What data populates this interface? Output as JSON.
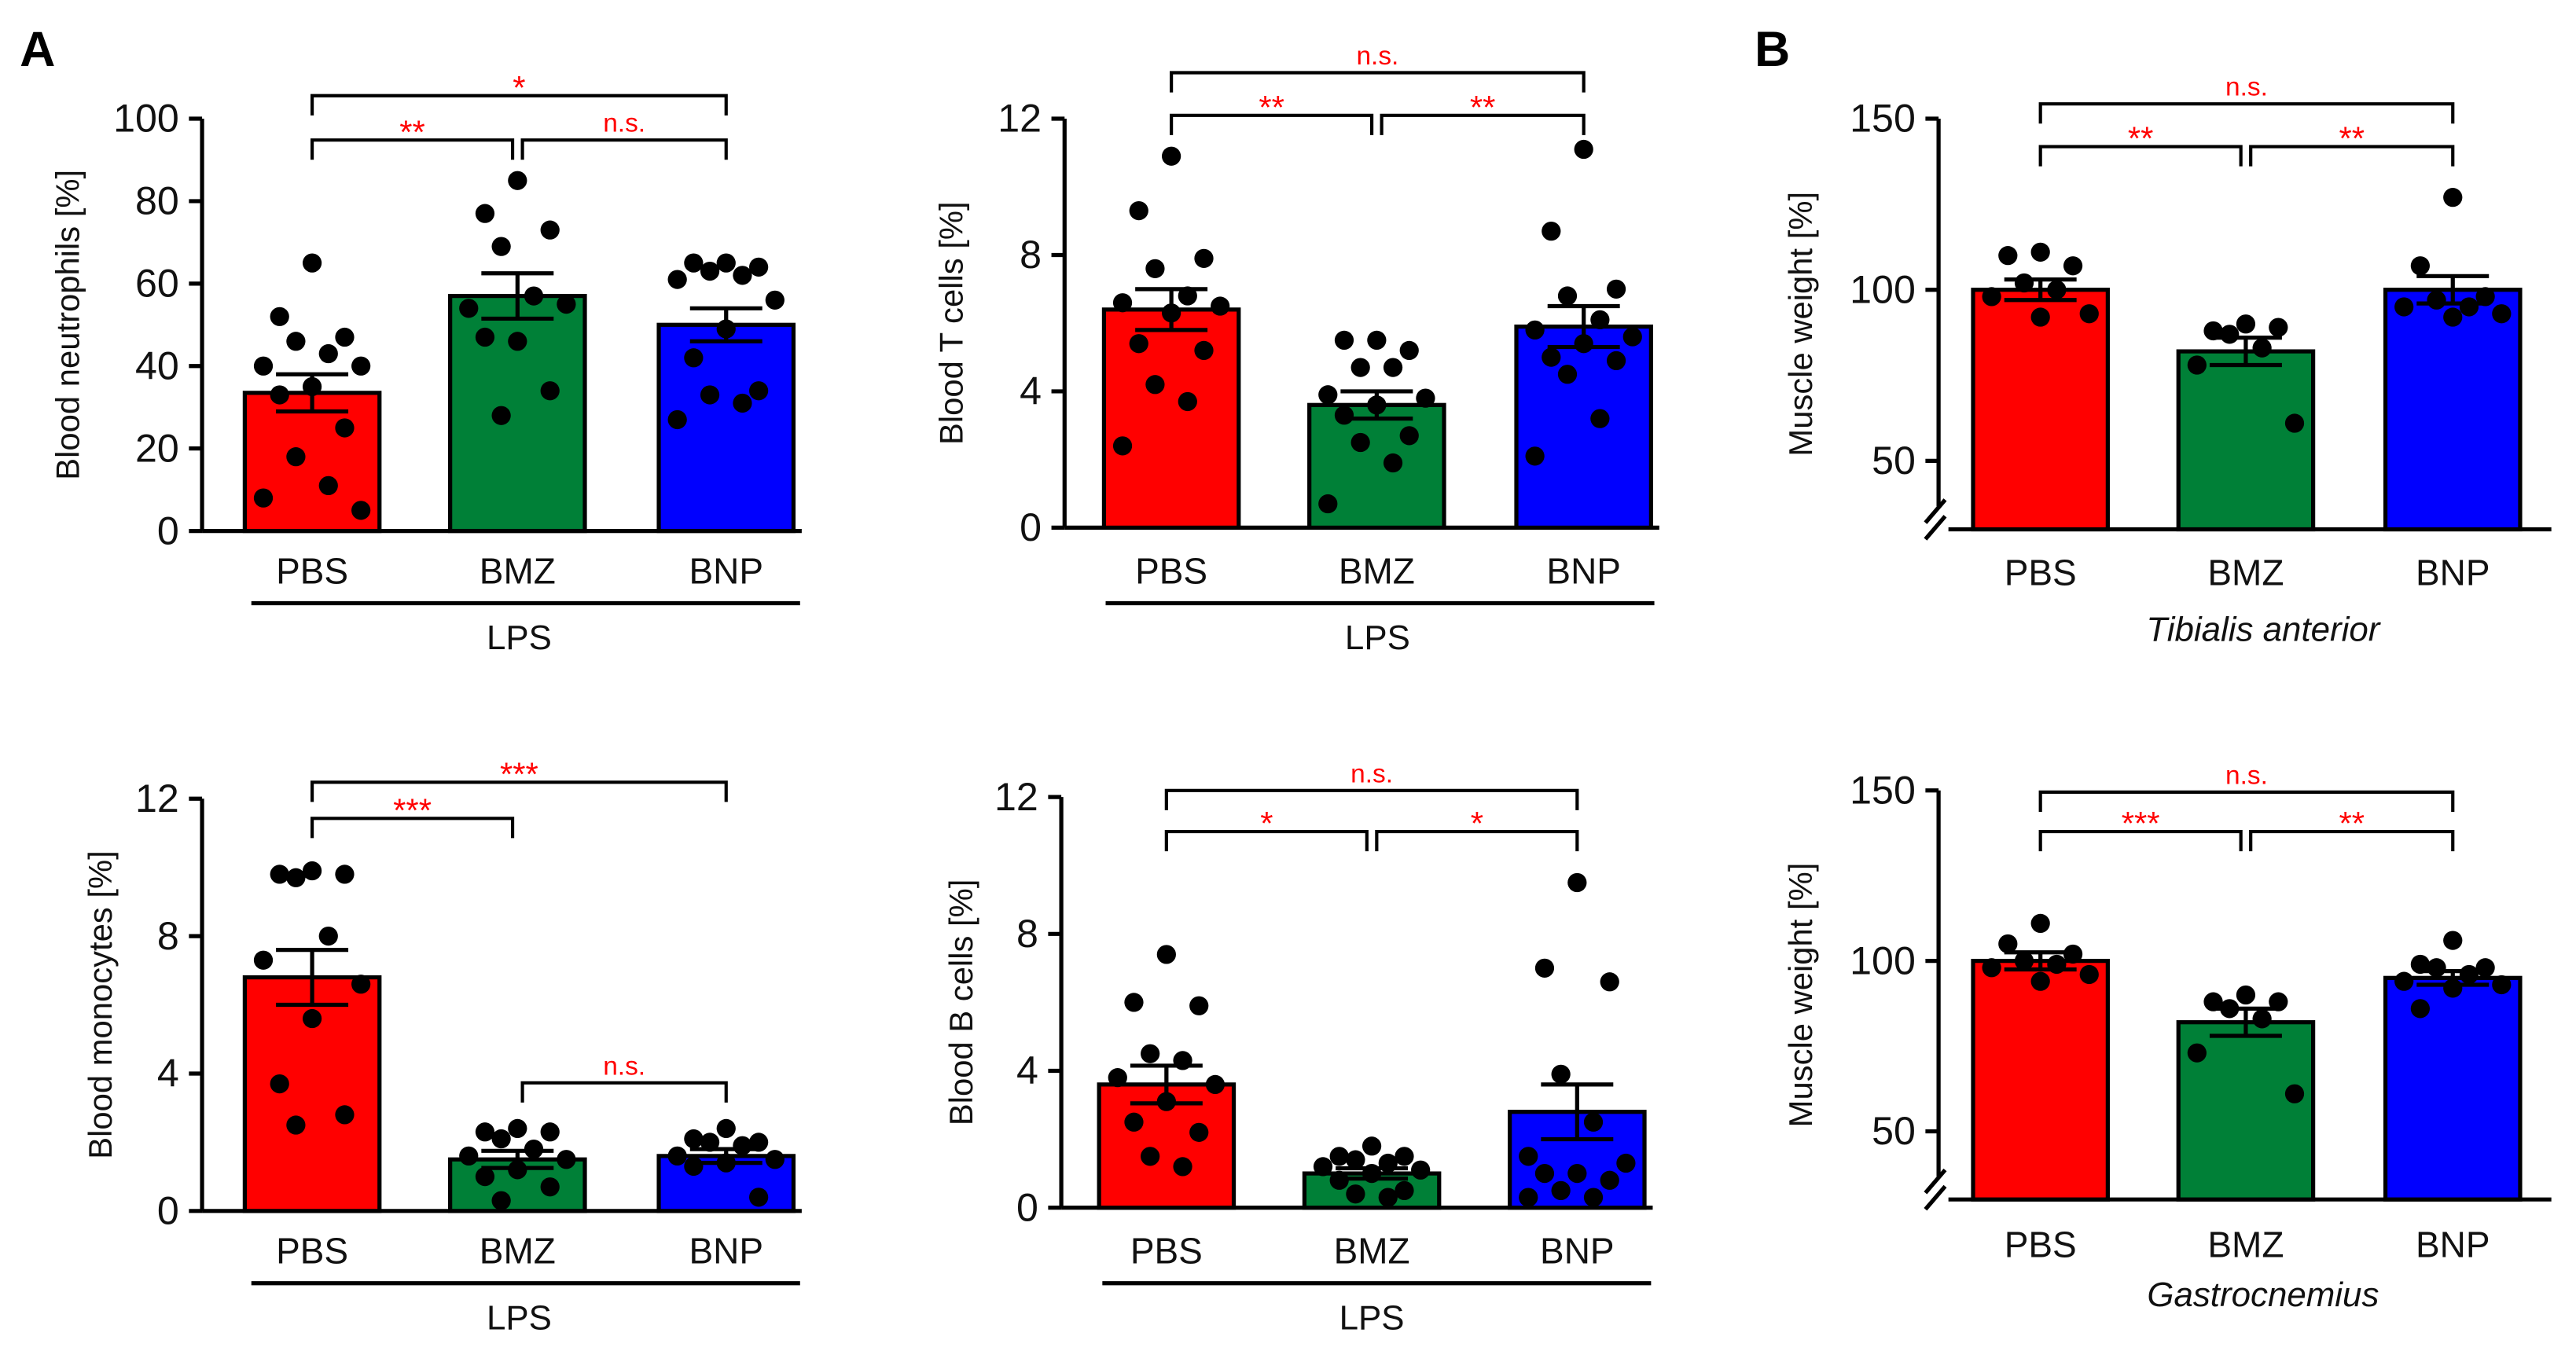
{
  "panel_labels": [
    "A",
    "B"
  ],
  "colors": {
    "PBS": "#ff0000",
    "BMZ": "#008037",
    "BNP": "#0000ff",
    "sig": "#ff0000"
  },
  "chart_data": [
    {
      "type": "bar",
      "id": "neutrophils",
      "ylabel": "Blood neutrophils [%]",
      "group_label": "LPS",
      "group_italic": false,
      "categories": [
        "PBS",
        "BMZ",
        "BNP"
      ],
      "ylim": [
        0,
        100
      ],
      "ticks": [
        "0",
        "20",
        "40",
        "60",
        "80",
        "100"
      ],
      "tick_values": [
        0,
        20,
        40,
        60,
        80,
        100
      ],
      "axis_break": false,
      "means": [
        33.5,
        57,
        50
      ],
      "sem": [
        4.5,
        5.5,
        4
      ],
      "points": [
        [
          65,
          52,
          47,
          46,
          43,
          40,
          40,
          35,
          33,
          25,
          18,
          11,
          8,
          5
        ],
        [
          85,
          77,
          73,
          69,
          57,
          54,
          55,
          46,
          47,
          34,
          28
        ],
        [
          65,
          65,
          64,
          63,
          62,
          61,
          56,
          49,
          42,
          34,
          33,
          31,
          27
        ]
      ],
      "comparisons": [
        {
          "pair": [
            0,
            1
          ],
          "label": "**"
        },
        {
          "pair": [
            1,
            2
          ],
          "label": "n.s."
        },
        {
          "pair": [
            0,
            2
          ],
          "label": "*"
        }
      ]
    },
    {
      "type": "bar",
      "id": "tcells",
      "ylabel": "Blood T cells [%]",
      "group_label": "LPS",
      "group_italic": false,
      "categories": [
        "PBS",
        "BMZ",
        "BNP"
      ],
      "ylim": [
        0,
        12
      ],
      "ticks": [
        "0",
        "4",
        "8",
        "12"
      ],
      "tick_values": [
        0,
        4,
        8,
        12
      ],
      "axis_break": false,
      "means": [
        6.4,
        3.6,
        5.9
      ],
      "sem": [
        0.6,
        0.4,
        0.6
      ],
      "points": [
        [
          10.9,
          9.3,
          7.9,
          7.6,
          6.8,
          6.6,
          6.5,
          6.3,
          5.4,
          5.2,
          4.2,
          3.7,
          2.4
        ],
        [
          5.5,
          5.5,
          5.2,
          4.7,
          4.7,
          3.9,
          3.8,
          3.6,
          3.3,
          2.7,
          2.5,
          1.9,
          0.7
        ],
        [
          11.1,
          8.7,
          7.0,
          6.8,
          6.1,
          5.8,
          5.6,
          5.4,
          5.0,
          4.9,
          4.5,
          3.2,
          2.1
        ]
      ],
      "comparisons": [
        {
          "pair": [
            0,
            1
          ],
          "label": "**"
        },
        {
          "pair": [
            1,
            2
          ],
          "label": "**"
        },
        {
          "pair": [
            0,
            2
          ],
          "label": "n.s."
        }
      ]
    },
    {
      "type": "bar",
      "id": "ta",
      "ylabel": "Muscle weight [%]",
      "group_label": "Tibialis anterior",
      "group_italic": true,
      "categories": [
        "PBS",
        "BMZ",
        "BNP"
      ],
      "ylim": [
        30,
        150
      ],
      "ticks": [
        "50",
        "100",
        "150"
      ],
      "tick_values": [
        50,
        100,
        150
      ],
      "axis_break": true,
      "means": [
        100,
        82,
        100
      ],
      "sem": [
        3,
        4,
        4
      ],
      "points": [
        [
          111,
          110,
          107,
          102,
          100,
          98,
          93,
          92
        ],
        [
          90,
          88,
          89,
          87,
          83,
          78,
          61
        ],
        [
          127,
          107,
          98,
          97,
          95,
          95,
          93,
          92
        ]
      ],
      "comparisons": [
        {
          "pair": [
            0,
            1
          ],
          "label": "**"
        },
        {
          "pair": [
            1,
            2
          ],
          "label": "**"
        },
        {
          "pair": [
            0,
            2
          ],
          "label": "n.s."
        }
      ]
    },
    {
      "type": "bar",
      "id": "monocytes",
      "ylabel": "Blood monocytes [%]",
      "group_label": "LPS",
      "group_italic": false,
      "categories": [
        "PBS",
        "BMZ",
        "BNP"
      ],
      "ylim": [
        0,
        12
      ],
      "ticks": [
        "0",
        "4",
        "8",
        "12"
      ],
      "tick_values": [
        0,
        4,
        8,
        12
      ],
      "axis_break": false,
      "means": [
        6.8,
        1.5,
        1.6
      ],
      "sem": [
        0.8,
        0.25,
        0.2
      ],
      "points": [
        [
          9.9,
          9.8,
          9.8,
          9.7,
          8.0,
          7.3,
          6.6,
          5.6,
          3.7,
          2.8,
          2.5
        ],
        [
          2.4,
          2.3,
          2.3,
          2.1,
          1.8,
          1.6,
          1.5,
          1.2,
          1.0,
          0.7,
          0.3
        ],
        [
          2.4,
          2.1,
          2.0,
          2.0,
          1.9,
          1.6,
          1.5,
          1.4,
          1.3,
          0.4
        ]
      ],
      "comparisons": [
        {
          "pair": [
            0,
            1
          ],
          "label": "***"
        },
        {
          "pair": [
            0,
            2
          ],
          "label": "***"
        },
        {
          "pair": [
            1,
            2
          ],
          "label": "n.s."
        }
      ]
    },
    {
      "type": "bar",
      "id": "bcells",
      "ylabel": "Blood B cells [%]",
      "group_label": "LPS",
      "group_italic": false,
      "categories": [
        "PBS",
        "BMZ",
        "BNP"
      ],
      "ylim": [
        0,
        12
      ],
      "ticks": [
        "0",
        "4",
        "8",
        "12"
      ],
      "tick_values": [
        0,
        4,
        8,
        12
      ],
      "axis_break": false,
      "means": [
        3.6,
        1.0,
        2.8
      ],
      "sem": [
        0.55,
        0.15,
        0.8
      ],
      "points": [
        [
          7.4,
          6.0,
          5.9,
          4.5,
          4.3,
          3.8,
          3.6,
          3.1,
          2.5,
          2.2,
          1.5,
          1.2
        ],
        [
          1.8,
          1.5,
          1.5,
          1.4,
          1.3,
          1.2,
          1.1,
          1.0,
          0.8,
          0.5,
          0.4,
          0.3
        ],
        [
          9.5,
          7.0,
          6.6,
          3.9,
          2.5,
          1.5,
          1.3,
          1.0,
          1.0,
          0.8,
          0.5,
          0.3,
          0.3
        ]
      ],
      "comparisons": [
        {
          "pair": [
            0,
            1
          ],
          "label": "*"
        },
        {
          "pair": [
            1,
            2
          ],
          "label": "*"
        },
        {
          "pair": [
            0,
            2
          ],
          "label": "n.s."
        }
      ]
    },
    {
      "type": "bar",
      "id": "ga",
      "ylabel": "Muscle weight [%]",
      "group_label": "Gastrocnemius",
      "group_italic": true,
      "categories": [
        "PBS",
        "BMZ",
        "BNP"
      ],
      "ylim": [
        30,
        150
      ],
      "ticks": [
        "50",
        "100",
        "150"
      ],
      "tick_values": [
        50,
        100,
        150
      ],
      "axis_break": true,
      "means": [
        100,
        82,
        95
      ],
      "sem": [
        2.5,
        4,
        2
      ],
      "points": [
        [
          111,
          105,
          102,
          100,
          99,
          98,
          96,
          94
        ],
        [
          90,
          88,
          88,
          86,
          83,
          73,
          61
        ],
        [
          106,
          99,
          98,
          98,
          96,
          94,
          93,
          92,
          86
        ]
      ],
      "comparisons": [
        {
          "pair": [
            0,
            1
          ],
          "label": "***"
        },
        {
          "pair": [
            1,
            2
          ],
          "label": "**"
        },
        {
          "pair": [
            0,
            2
          ],
          "label": "n.s."
        }
      ]
    }
  ]
}
